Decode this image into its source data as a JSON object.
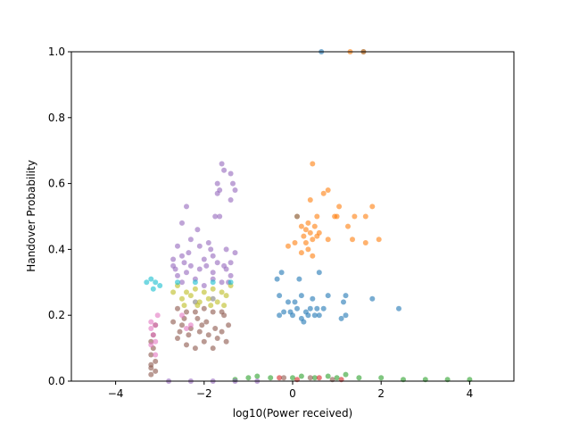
{
  "chart_data": {
    "type": "scatter",
    "xlabel": "log10(Power received)",
    "ylabel": "Handover Probability",
    "xlim": [
      -5,
      5
    ],
    "ylim": [
      0,
      1
    ],
    "xticks": [
      -4,
      -2,
      0,
      2,
      4
    ],
    "yticks": [
      0.0,
      0.2,
      0.4,
      0.6,
      0.8,
      1.0
    ],
    "xtick_labels": [
      "−4",
      "−2",
      "0",
      "2",
      "4"
    ],
    "ytick_labels": [
      "0.0",
      "0.2",
      "0.4",
      "0.6",
      "0.8",
      "1.0"
    ],
    "grid": false,
    "legend": false,
    "series": [
      {
        "color": "#1f77b4",
        "points": [
          [
            -0.35,
            0.31
          ],
          [
            -0.25,
            0.33
          ],
          [
            0.15,
            0.31
          ],
          [
            0.6,
            0.33
          ],
          [
            -0.3,
            0.26
          ],
          [
            -0.1,
            0.24
          ],
          [
            0.2,
            0.26
          ],
          [
            0.45,
            0.25
          ],
          [
            0.55,
            0.22
          ],
          [
            0.8,
            0.26
          ],
          [
            1.2,
            0.26
          ],
          [
            1.15,
            0.24
          ],
          [
            1.1,
            0.19
          ],
          [
            1.2,
            0.2
          ],
          [
            1.8,
            0.25
          ],
          [
            2.4,
            0.22
          ],
          [
            0.05,
            0.24
          ],
          [
            -0.2,
            0.21
          ],
          [
            0.0,
            0.2
          ],
          [
            0.3,
            0.21
          ],
          [
            0.5,
            0.2
          ],
          [
            0.7,
            0.22
          ],
          [
            -0.3,
            0.2
          ],
          [
            0.2,
            0.19
          ],
          [
            0.4,
            0.22
          ],
          [
            0.1,
            0.22
          ],
          [
            0.6,
            0.2
          ],
          [
            0.25,
            0.18
          ],
          [
            -0.05,
            0.21
          ],
          [
            0.35,
            0.2
          ],
          [
            1.6,
            1.0
          ],
          [
            0.65,
            1.0
          ]
        ]
      },
      {
        "color": "#ff7f0e",
        "points": [
          [
            0.45,
            0.66
          ],
          [
            0.8,
            0.58
          ],
          [
            1.8,
            0.53
          ],
          [
            0.4,
            0.55
          ],
          [
            0.7,
            0.57
          ],
          [
            1.05,
            0.53
          ],
          [
            0.1,
            0.5
          ],
          [
            0.55,
            0.5
          ],
          [
            0.95,
            0.5
          ],
          [
            1.0,
            0.5
          ],
          [
            1.4,
            0.5
          ],
          [
            1.65,
            0.5
          ],
          [
            0.35,
            0.48
          ],
          [
            0.5,
            0.47
          ],
          [
            0.2,
            0.47
          ],
          [
            1.25,
            0.47
          ],
          [
            0.3,
            0.46
          ],
          [
            0.4,
            0.45
          ],
          [
            0.6,
            0.45
          ],
          [
            0.25,
            0.44
          ],
          [
            0.45,
            0.43
          ],
          [
            0.3,
            0.42
          ],
          [
            0.8,
            0.43
          ],
          [
            1.35,
            0.43
          ],
          [
            1.95,
            0.43
          ],
          [
            1.65,
            0.42
          ],
          [
            -0.1,
            0.41
          ],
          [
            0.05,
            0.42
          ],
          [
            0.35,
            0.4
          ],
          [
            0.2,
            0.39
          ],
          [
            0.45,
            0.38
          ],
          [
            0.55,
            0.44
          ],
          [
            1.3,
            1.0
          ],
          [
            1.6,
            1.0
          ]
        ]
      },
      {
        "color": "#2ca02c",
        "points": [
          [
            -1.0,
            0.01
          ],
          [
            -0.5,
            0.01
          ],
          [
            0.0,
            0.01
          ],
          [
            0.5,
            0.01
          ],
          [
            1.0,
            0.01
          ],
          [
            1.5,
            0.01
          ],
          [
            2.0,
            0.01
          ],
          [
            2.5,
            0.005
          ],
          [
            3.0,
            0.005
          ],
          [
            3.5,
            0.005
          ],
          [
            4.0,
            0.005
          ],
          [
            -0.8,
            0.015
          ],
          [
            0.2,
            0.015
          ],
          [
            1.2,
            0.02
          ],
          [
            0.8,
            0.015
          ],
          [
            -1.3,
            0.005
          ]
        ]
      },
      {
        "color": "#d62728",
        "points": [
          [
            -0.3,
            0.01
          ],
          [
            0.1,
            0.005
          ],
          [
            0.6,
            0.01
          ],
          [
            1.1,
            0.005
          ]
        ]
      },
      {
        "color": "#9467bd",
        "points": [
          [
            -1.6,
            0.66
          ],
          [
            -1.55,
            0.64
          ],
          [
            -1.4,
            0.63
          ],
          [
            -1.7,
            0.6
          ],
          [
            -1.65,
            0.58
          ],
          [
            -1.35,
            0.6
          ],
          [
            -1.3,
            0.58
          ],
          [
            -1.7,
            0.57
          ],
          [
            -1.4,
            0.55
          ],
          [
            -2.4,
            0.53
          ],
          [
            -1.75,
            0.5
          ],
          [
            -1.65,
            0.5
          ],
          [
            -2.5,
            0.48
          ],
          [
            -2.15,
            0.46
          ],
          [
            -2.3,
            0.43
          ],
          [
            -1.9,
            0.42
          ],
          [
            -2.6,
            0.41
          ],
          [
            -2.1,
            0.41
          ],
          [
            -1.5,
            0.4
          ],
          [
            -2.5,
            0.38
          ],
          [
            -2.7,
            0.37
          ],
          [
            -1.3,
            0.39
          ],
          [
            -2.45,
            0.36
          ],
          [
            -1.8,
            0.38
          ],
          [
            -2.0,
            0.37
          ],
          [
            -2.3,
            0.35
          ],
          [
            -2.1,
            0.34
          ],
          [
            -1.5,
            0.34
          ],
          [
            -1.4,
            0.36
          ],
          [
            -2.4,
            0.33
          ],
          [
            -1.8,
            0.33
          ],
          [
            -2.6,
            0.32
          ],
          [
            -1.4,
            0.32
          ],
          [
            -2.2,
            0.31
          ],
          [
            -1.8,
            0.31
          ],
          [
            -1.6,
            0.3
          ],
          [
            -2.5,
            0.3
          ],
          [
            -2.0,
            0.29
          ],
          [
            -1.45,
            0.3
          ],
          [
            -2.7,
            0.35
          ],
          [
            -1.95,
            0.35
          ],
          [
            -1.7,
            0.36
          ],
          [
            -2.35,
            0.39
          ],
          [
            -1.55,
            0.35
          ],
          [
            -2.65,
            0.34
          ],
          [
            -1.85,
            0.4
          ],
          [
            -2.8,
            0.0
          ],
          [
            -2.3,
            0.0
          ],
          [
            -1.8,
            0.0
          ],
          [
            -1.3,
            0.0
          ],
          [
            -0.8,
            0.0
          ]
        ]
      },
      {
        "color": "#8c564b",
        "points": [
          [
            -3.2,
            0.12
          ],
          [
            -3.15,
            0.1
          ],
          [
            -3.2,
            0.08
          ],
          [
            -3.1,
            0.06
          ],
          [
            -3.2,
            0.04
          ],
          [
            -3.1,
            0.03
          ],
          [
            -3.2,
            0.05
          ],
          [
            -3.15,
            0.14
          ],
          [
            -3.1,
            0.17
          ],
          [
            -3.2,
            0.02
          ],
          [
            -2.6,
            0.22
          ],
          [
            -2.4,
            0.21
          ],
          [
            -2.2,
            0.21
          ],
          [
            -2.0,
            0.22
          ],
          [
            -1.8,
            0.21
          ],
          [
            -1.6,
            0.21
          ],
          [
            -2.7,
            0.18
          ],
          [
            -2.5,
            0.17
          ],
          [
            -2.3,
            0.16
          ],
          [
            -2.1,
            0.15
          ],
          [
            -1.9,
            0.14
          ],
          [
            -1.7,
            0.13
          ],
          [
            -1.5,
            0.12
          ],
          [
            -2.4,
            0.11
          ],
          [
            -2.2,
            0.1
          ],
          [
            -1.8,
            0.1
          ],
          [
            -2.6,
            0.13
          ],
          [
            -2.0,
            0.12
          ],
          [
            -1.6,
            0.15
          ],
          [
            -2.45,
            0.19
          ],
          [
            -1.95,
            0.18
          ],
          [
            -1.45,
            0.17
          ],
          [
            -2.15,
            0.19
          ],
          [
            -2.35,
            0.14
          ],
          [
            -1.75,
            0.16
          ],
          [
            -1.55,
            0.2
          ],
          [
            -2.55,
            0.15
          ],
          [
            -2.05,
            0.17
          ],
          [
            -0.2,
            0.01
          ],
          [
            0.4,
            0.01
          ],
          [
            0.9,
            0.005
          ]
        ]
      },
      {
        "color": "#e377c2",
        "points": [
          [
            -3.2,
            0.18
          ],
          [
            -3.1,
            0.17
          ],
          [
            -3.2,
            0.16
          ],
          [
            -3.15,
            0.14
          ],
          [
            -3.1,
            0.12
          ],
          [
            -3.2,
            0.11
          ],
          [
            -3.1,
            0.08
          ],
          [
            -2.3,
            0.17
          ],
          [
            -2.5,
            0.2
          ],
          [
            -2.4,
            0.16
          ],
          [
            -3.05,
            0.2
          ]
        ]
      },
      {
        "color": "#7f7f7f",
        "points": [
          [
            -2.2,
            0.24
          ],
          [
            -1.8,
            0.25
          ],
          [
            0.1,
            0.5
          ]
        ]
      },
      {
        "color": "#bcbd22",
        "points": [
          [
            -2.6,
            0.29
          ],
          [
            -2.4,
            0.27
          ],
          [
            -2.2,
            0.28
          ],
          [
            -2.0,
            0.27
          ],
          [
            -1.8,
            0.28
          ],
          [
            -1.6,
            0.27
          ],
          [
            -1.4,
            0.29
          ],
          [
            -2.5,
            0.25
          ],
          [
            -2.3,
            0.26
          ],
          [
            -2.1,
            0.24
          ],
          [
            -1.9,
            0.25
          ],
          [
            -1.7,
            0.24
          ],
          [
            -1.5,
            0.26
          ],
          [
            -2.7,
            0.27
          ],
          [
            -2.45,
            0.23
          ],
          [
            -2.15,
            0.23
          ],
          [
            -1.85,
            0.23
          ],
          [
            -1.55,
            0.23
          ]
        ]
      },
      {
        "color": "#17becf",
        "points": [
          [
            -3.3,
            0.3
          ],
          [
            -3.2,
            0.31
          ],
          [
            -3.1,
            0.3
          ],
          [
            -3.0,
            0.29
          ],
          [
            -3.15,
            0.28
          ],
          [
            -2.6,
            0.3
          ],
          [
            -2.2,
            0.3
          ],
          [
            -1.8,
            0.3
          ],
          [
            -1.4,
            0.3
          ]
        ]
      }
    ]
  }
}
